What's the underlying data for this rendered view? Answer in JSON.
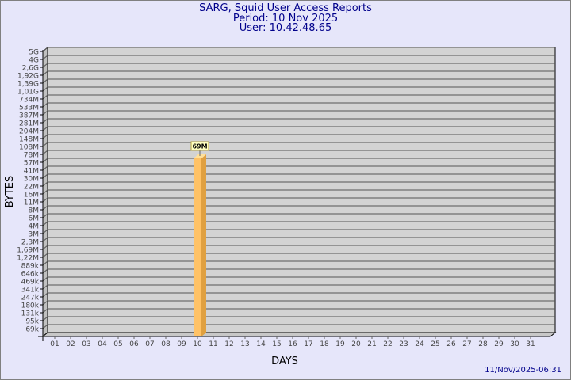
{
  "header": {
    "title": "SARG, Squid User Access Reports",
    "period": "Period: 10 Nov 2025",
    "user": "User: 10.42.48.65"
  },
  "footer": {
    "timestamp": "11/Nov/2025-06:31"
  },
  "colors": {
    "background": "#e6e6fa",
    "wall": "#d3d3d3",
    "bar": "#ffc266",
    "bar_side": "#e0a040",
    "text": "#00008b"
  },
  "chart_data": {
    "type": "bar",
    "xlabel": "DAYS",
    "ylabel": "BYTES",
    "y_scale": "log-like (labelled ticks)",
    "y_ticks": [
      "5G",
      "4G",
      "2,6G",
      "1,92G",
      "1,39G",
      "1,01G",
      "734M",
      "533M",
      "387M",
      "281M",
      "204M",
      "148M",
      "108M",
      "78M",
      "57M",
      "41M",
      "30M",
      "22M",
      "16M",
      "11M",
      "8M",
      "6M",
      "4M",
      "3M",
      "2,3M",
      "1,69M",
      "1,22M",
      "889k",
      "646k",
      "469k",
      "341k",
      "247k",
      "180k",
      "131k",
      "95k",
      "69k"
    ],
    "categories": [
      "01",
      "02",
      "03",
      "04",
      "05",
      "06",
      "07",
      "08",
      "09",
      "10",
      "11",
      "12",
      "13",
      "14",
      "15",
      "16",
      "17",
      "18",
      "19",
      "20",
      "21",
      "22",
      "23",
      "24",
      "25",
      "26",
      "27",
      "28",
      "29",
      "30",
      "31"
    ],
    "bars": [
      {
        "day": "10",
        "label": "69M",
        "value_tick_position": 13.5
      }
    ],
    "grid": true
  }
}
